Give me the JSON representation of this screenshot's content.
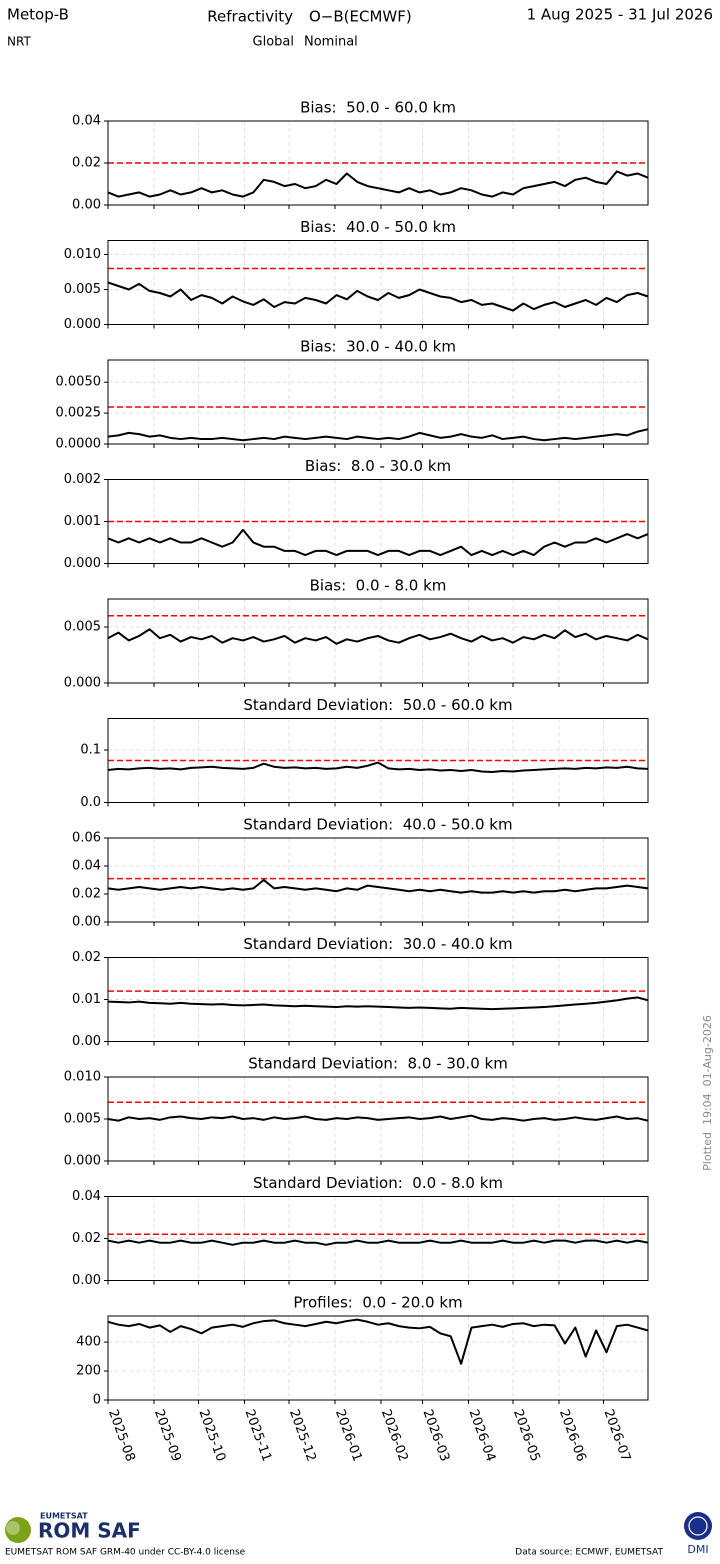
{
  "header": {
    "satellite": "Metop-B",
    "mode": "NRT",
    "quantity": "Refractivity",
    "comparison": "O−B(ECMWF)",
    "region": "Global",
    "status": "Nominal",
    "period": "1 Aug 2025 - 31 Jul 2026"
  },
  "side_note": "Plotted  19:04  01-Aug-2026",
  "footer": {
    "org": "EUMETSAT",
    "logo_text": "ROM SAF",
    "license": "EUMETSAT ROM SAF GRM-40 under CC-BY-4.0 license",
    "source": "Data source: ECMWF, EUMETSAT",
    "dmi": "DMI"
  },
  "shared_x": {
    "x": [
      0,
      7,
      14,
      21,
      28,
      35,
      42,
      49,
      56,
      63,
      70,
      77,
      84,
      91,
      98,
      105,
      112,
      119,
      126,
      133,
      140,
      147,
      154,
      161,
      168,
      175,
      182,
      189,
      196,
      203,
      210,
      217,
      224,
      231,
      238,
      245,
      252,
      259,
      266,
      273,
      280,
      287,
      294,
      301,
      308,
      315,
      322,
      329,
      336,
      343,
      350,
      357,
      364
    ],
    "xlim": [
      0,
      364
    ],
    "xticks": [
      {
        "value": 0,
        "label": "2025-08"
      },
      {
        "value": 31,
        "label": "2025-09"
      },
      {
        "value": 61,
        "label": "2025-10"
      },
      {
        "value": 92,
        "label": "2025-11"
      },
      {
        "value": 122,
        "label": "2025-12"
      },
      {
        "value": 153,
        "label": "2026-01"
      },
      {
        "value": 184,
        "label": "2026-02"
      },
      {
        "value": 212,
        "label": "2026-03"
      },
      {
        "value": 243,
        "label": "2026-04"
      },
      {
        "value": 273,
        "label": "2026-05"
      },
      {
        "value": 304,
        "label": "2026-06"
      },
      {
        "value": 334,
        "label": "2026-07"
      }
    ]
  },
  "chart_data": [
    {
      "type": "line",
      "title": "Bias:  50.0 - 60.0 km",
      "color": "#000000",
      "threshold": 0.02,
      "threshold_color": "#ff0000",
      "grid": true,
      "ylim": [
        0,
        0.04
      ],
      "yticks": [
        {
          "value": 0,
          "label": "0.00"
        },
        0.02,
        0.04
      ],
      "values": [
        0.006,
        0.004,
        0.005,
        0.006,
        0.004,
        0.005,
        0.007,
        0.005,
        0.006,
        0.008,
        0.006,
        0.007,
        0.005,
        0.004,
        0.006,
        0.012,
        0.011,
        0.009,
        0.01,
        0.008,
        0.009,
        0.012,
        0.01,
        0.015,
        0.011,
        0.009,
        0.008,
        0.007,
        0.006,
        0.008,
        0.006,
        0.007,
        0.005,
        0.006,
        0.008,
        0.007,
        0.005,
        0.004,
        0.006,
        0.005,
        0.008,
        0.009,
        0.01,
        0.011,
        0.009,
        0.012,
        0.013,
        0.011,
        0.01,
        0.016,
        0.014,
        0.015,
        0.013
      ]
    },
    {
      "type": "line",
      "title": "Bias:  40.0 - 50.0 km",
      "color": "#000000",
      "threshold": 0.008,
      "threshold_color": "#ff0000",
      "grid": true,
      "ylim": [
        0,
        0.012
      ],
      "yticks": [
        {
          "value": 0,
          "label": "0.000"
        },
        0.005,
        {
          "value": 0.01,
          "label": "0.010"
        }
      ],
      "values": [
        0.006,
        0.0055,
        0.005,
        0.0058,
        0.0048,
        0.0045,
        0.004,
        0.005,
        0.0035,
        0.0042,
        0.0038,
        0.003,
        0.004,
        0.0033,
        0.0028,
        0.0036,
        0.0025,
        0.0032,
        0.003,
        0.0038,
        0.0035,
        0.003,
        0.0042,
        0.0036,
        0.0048,
        0.004,
        0.0035,
        0.0045,
        0.0038,
        0.0042,
        0.005,
        0.0045,
        0.004,
        0.0038,
        0.0032,
        0.0035,
        0.0028,
        0.003,
        0.0025,
        0.002,
        0.003,
        0.0022,
        0.0028,
        0.0032,
        0.0025,
        0.003,
        0.0035,
        0.0028,
        0.0038,
        0.0032,
        0.0042,
        0.0045,
        0.004
      ]
    },
    {
      "type": "line",
      "title": "Bias:  30.0 - 40.0 km",
      "color": "#000000",
      "threshold": 0.003,
      "threshold_color": "#ff0000",
      "grid": true,
      "ylim": [
        0,
        0.0068
      ],
      "yticks": [
        {
          "value": 0,
          "label": "0.0000"
        },
        0.0025,
        {
          "value": 0.005,
          "label": "0.0050"
        }
      ],
      "values": [
        0.0006,
        0.0007,
        0.0009,
        0.0008,
        0.0006,
        0.0007,
        0.0005,
        0.0004,
        0.0005,
        0.0004,
        0.0004,
        0.0005,
        0.0004,
        0.0003,
        0.0004,
        0.0005,
        0.0004,
        0.0006,
        0.0005,
        0.0004,
        0.0005,
        0.0006,
        0.0005,
        0.0004,
        0.0006,
        0.0005,
        0.0004,
        0.0005,
        0.0004,
        0.0006,
        0.0009,
        0.0007,
        0.0005,
        0.0006,
        0.0008,
        0.0006,
        0.0005,
        0.0007,
        0.0004,
        0.0005,
        0.0006,
        0.0004,
        0.0003,
        0.0004,
        0.0005,
        0.0004,
        0.0005,
        0.0006,
        0.0007,
        0.0008,
        0.0007,
        0.001,
        0.0012
      ]
    },
    {
      "type": "line",
      "title": "Bias:  8.0 - 30.0 km",
      "color": "#000000",
      "threshold": 0.001,
      "threshold_color": "#ff0000",
      "grid": true,
      "ylim": [
        0,
        0.002
      ],
      "yticks": [
        {
          "value": 0,
          "label": "0.000"
        },
        0.001,
        0.002
      ],
      "values": [
        0.0006,
        0.0005,
        0.0006,
        0.0005,
        0.0006,
        0.0005,
        0.0006,
        0.0005,
        0.0005,
        0.0006,
        0.0005,
        0.0004,
        0.0005,
        0.0008,
        0.0005,
        0.0004,
        0.0004,
        0.0003,
        0.0003,
        0.0002,
        0.0003,
        0.0003,
        0.0002,
        0.0003,
        0.0003,
        0.0003,
        0.0002,
        0.0003,
        0.0003,
        0.0002,
        0.0003,
        0.0003,
        0.0002,
        0.0003,
        0.0004,
        0.0002,
        0.0003,
        0.0002,
        0.0003,
        0.0002,
        0.0003,
        0.0002,
        0.0004,
        0.0005,
        0.0004,
        0.0005,
        0.0005,
        0.0006,
        0.0005,
        0.0006,
        0.0007,
        0.0006,
        0.0007
      ]
    },
    {
      "type": "line",
      "title": "Bias:  0.0 - 8.0 km",
      "color": "#000000",
      "threshold": 0.006,
      "threshold_color": "#ff0000",
      "grid": true,
      "ylim": [
        0,
        0.0075
      ],
      "yticks": [
        {
          "value": 0,
          "label": "0.000"
        },
        0.005
      ],
      "values": [
        0.004,
        0.0045,
        0.0038,
        0.0042,
        0.0048,
        0.004,
        0.0043,
        0.0037,
        0.0041,
        0.0039,
        0.0042,
        0.0036,
        0.004,
        0.0038,
        0.0041,
        0.0037,
        0.0039,
        0.0042,
        0.0036,
        0.004,
        0.0038,
        0.0041,
        0.0035,
        0.0039,
        0.0037,
        0.004,
        0.0042,
        0.0038,
        0.0036,
        0.004,
        0.0043,
        0.0039,
        0.0041,
        0.0044,
        0.004,
        0.0037,
        0.0042,
        0.0038,
        0.004,
        0.0036,
        0.0041,
        0.0039,
        0.0043,
        0.004,
        0.0047,
        0.0041,
        0.0044,
        0.0039,
        0.0042,
        0.004,
        0.0038,
        0.0043,
        0.0039
      ]
    },
    {
      "type": "line",
      "title": "Standard Deviation:  50.0 - 60.0 km",
      "color": "#000000",
      "threshold": 0.08,
      "threshold_color": "#ff0000",
      "grid": true,
      "ylim": [
        0,
        0.16
      ],
      "yticks": [
        {
          "value": 0,
          "label": "0.0"
        },
        0.1
      ],
      "values": [
        0.062,
        0.064,
        0.063,
        0.065,
        0.066,
        0.064,
        0.065,
        0.063,
        0.066,
        0.067,
        0.068,
        0.066,
        0.065,
        0.064,
        0.066,
        0.074,
        0.068,
        0.066,
        0.067,
        0.065,
        0.066,
        0.064,
        0.065,
        0.068,
        0.066,
        0.07,
        0.076,
        0.065,
        0.063,
        0.064,
        0.062,
        0.063,
        0.061,
        0.062,
        0.06,
        0.062,
        0.059,
        0.058,
        0.06,
        0.059,
        0.061,
        0.062,
        0.063,
        0.064,
        0.065,
        0.064,
        0.066,
        0.065,
        0.067,
        0.066,
        0.068,
        0.065,
        0.064
      ]
    },
    {
      "type": "line",
      "title": "Standard Deviation:  40.0 - 50.0 km",
      "color": "#000000",
      "threshold": 0.031,
      "threshold_color": "#ff0000",
      "grid": true,
      "ylim": [
        0,
        0.06
      ],
      "yticks": [
        {
          "value": 0,
          "label": "0.00"
        },
        0.02,
        0.04,
        0.06
      ],
      "values": [
        0.024,
        0.023,
        0.024,
        0.025,
        0.024,
        0.023,
        0.024,
        0.025,
        0.024,
        0.025,
        0.024,
        0.023,
        0.024,
        0.023,
        0.024,
        0.03,
        0.024,
        0.025,
        0.024,
        0.023,
        0.024,
        0.023,
        0.022,
        0.024,
        0.023,
        0.026,
        0.025,
        0.024,
        0.023,
        0.022,
        0.023,
        0.022,
        0.023,
        0.022,
        0.021,
        0.022,
        0.021,
        0.021,
        0.022,
        0.021,
        0.022,
        0.021,
        0.022,
        0.022,
        0.023,
        0.022,
        0.023,
        0.024,
        0.024,
        0.025,
        0.026,
        0.025,
        0.024
      ]
    },
    {
      "type": "line",
      "title": "Standard Deviation:  30.0 - 40.0 km",
      "color": "#000000",
      "threshold": 0.012,
      "threshold_color": "#ff0000",
      "grid": true,
      "ylim": [
        0,
        0.02
      ],
      "yticks": [
        {
          "value": 0,
          "label": "0.00"
        },
        0.01,
        0.02
      ],
      "values": [
        0.0095,
        0.0094,
        0.0093,
        0.0095,
        0.0092,
        0.0091,
        0.009,
        0.0092,
        0.009,
        0.0089,
        0.0088,
        0.0089,
        0.0087,
        0.0086,
        0.0087,
        0.0088,
        0.0086,
        0.0085,
        0.0084,
        0.0085,
        0.0084,
        0.0083,
        0.0082,
        0.0084,
        0.0083,
        0.0084,
        0.0083,
        0.0082,
        0.0081,
        0.008,
        0.0081,
        0.008,
        0.0079,
        0.0078,
        0.008,
        0.0079,
        0.0078,
        0.0077,
        0.0078,
        0.0079,
        0.008,
        0.0081,
        0.0082,
        0.0084,
        0.0086,
        0.0088,
        0.009,
        0.0092,
        0.0095,
        0.0098,
        0.0102,
        0.0105,
        0.0098
      ]
    },
    {
      "type": "line",
      "title": "Standard Deviation:  8.0 - 30.0 km",
      "color": "#000000",
      "threshold": 0.007,
      "threshold_color": "#ff0000",
      "grid": true,
      "ylim": [
        0,
        0.01
      ],
      "yticks": [
        {
          "value": 0,
          "label": "0.000"
        },
        0.005,
        {
          "value": 0.01,
          "label": "0.010"
        }
      ],
      "values": [
        0.005,
        0.0048,
        0.0052,
        0.005,
        0.0051,
        0.0049,
        0.0052,
        0.0053,
        0.0051,
        0.005,
        0.0052,
        0.0051,
        0.0053,
        0.005,
        0.0051,
        0.0049,
        0.0052,
        0.005,
        0.0051,
        0.0053,
        0.005,
        0.0049,
        0.0051,
        0.005,
        0.0052,
        0.0051,
        0.0049,
        0.005,
        0.0051,
        0.0052,
        0.005,
        0.0051,
        0.0053,
        0.005,
        0.0052,
        0.0054,
        0.005,
        0.0049,
        0.0051,
        0.005,
        0.0048,
        0.005,
        0.0051,
        0.0049,
        0.005,
        0.0052,
        0.005,
        0.0049,
        0.0051,
        0.0053,
        0.005,
        0.0051,
        0.0048
      ]
    },
    {
      "type": "line",
      "title": "Standard Deviation:  0.0 - 8.0 km",
      "color": "#000000",
      "threshold": 0.022,
      "threshold_color": "#ff0000",
      "grid": true,
      "ylim": [
        0,
        0.04
      ],
      "yticks": [
        {
          "value": 0,
          "label": "0.00"
        },
        0.02,
        0.04
      ],
      "values": [
        0.019,
        0.018,
        0.019,
        0.018,
        0.019,
        0.018,
        0.018,
        0.019,
        0.018,
        0.018,
        0.019,
        0.018,
        0.017,
        0.018,
        0.018,
        0.019,
        0.018,
        0.018,
        0.019,
        0.018,
        0.018,
        0.017,
        0.018,
        0.018,
        0.019,
        0.018,
        0.018,
        0.019,
        0.018,
        0.018,
        0.018,
        0.019,
        0.018,
        0.018,
        0.019,
        0.018,
        0.018,
        0.018,
        0.019,
        0.018,
        0.018,
        0.019,
        0.018,
        0.019,
        0.019,
        0.018,
        0.019,
        0.019,
        0.018,
        0.019,
        0.018,
        0.019,
        0.018
      ]
    },
    {
      "type": "line",
      "title": "Profiles:  0.0 - 20.0 km",
      "color": "#000000",
      "grid": true,
      "ylim": [
        0,
        580
      ],
      "yticks": [
        0,
        200,
        400
      ],
      "values": [
        540,
        520,
        510,
        525,
        500,
        515,
        470,
        510,
        490,
        460,
        500,
        510,
        520,
        505,
        530,
        545,
        550,
        530,
        520,
        510,
        525,
        540,
        530,
        545,
        555,
        540,
        520,
        530,
        510,
        500,
        495,
        505,
        460,
        440,
        250,
        500,
        510,
        520,
        505,
        525,
        530,
        510,
        520,
        515,
        390,
        500,
        300,
        480,
        330,
        510,
        520,
        500,
        480
      ]
    }
  ]
}
